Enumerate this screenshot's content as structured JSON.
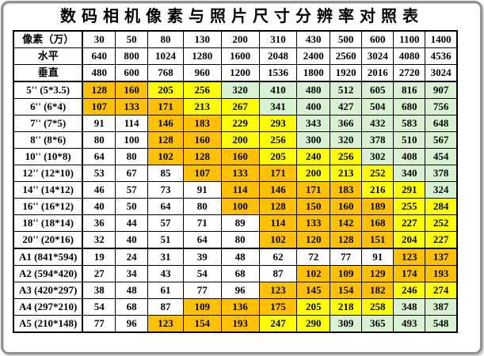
{
  "title": "数码相机像素与照片尺寸分辨率对照表",
  "color_key": {
    "w": "#FFFFFF",
    "o": "#FFC000",
    "y": "#FFFF00",
    "g": "#D9F2D2"
  },
  "chart_data": {
    "type": "table",
    "title": "数码相机像素与照片尺寸分辨率对照表",
    "columns": [
      "像素（万）",
      "30",
      "50",
      "80",
      "130",
      "200",
      "310",
      "430",
      "500",
      "600",
      "1100",
      "1400"
    ],
    "rows": [
      {
        "label": "水平",
        "values": [
          640,
          800,
          1024,
          1280,
          1600,
          2048,
          2400,
          2560,
          3024,
          4080,
          4536
        ],
        "colors": [
          "w",
          "w",
          "w",
          "w",
          "w",
          "w",
          "w",
          "w",
          "w",
          "w",
          "w"
        ],
        "sep_below": false
      },
      {
        "label": "垂直",
        "values": [
          480,
          600,
          768,
          960,
          1200,
          1536,
          1800,
          1920,
          2016,
          2720,
          3024
        ],
        "colors": [
          "w",
          "w",
          "w",
          "w",
          "w",
          "w",
          "w",
          "w",
          "w",
          "w",
          "w"
        ],
        "sep_below": true
      },
      {
        "label": "5'' (5*3.5)",
        "values": [
          128,
          160,
          205,
          256,
          320,
          410,
          480,
          512,
          605,
          816,
          907
        ],
        "colors": [
          "o",
          "o",
          "y",
          "y",
          "g",
          "g",
          "g",
          "g",
          "g",
          "g",
          "g"
        ],
        "sep_below": false
      },
      {
        "label": "6'' (6*4)",
        "values": [
          107,
          133,
          171,
          213,
          267,
          341,
          400,
          427,
          504,
          680,
          756
        ],
        "colors": [
          "o",
          "o",
          "o",
          "y",
          "y",
          "g",
          "g",
          "g",
          "g",
          "g",
          "g"
        ],
        "sep_below": false
      },
      {
        "label": "7'' (7*5)",
        "values": [
          91,
          114,
          146,
          183,
          229,
          293,
          343,
          366,
          432,
          583,
          648
        ],
        "colors": [
          "w",
          "w",
          "o",
          "o",
          "y",
          "y",
          "g",
          "g",
          "g",
          "g",
          "g"
        ],
        "sep_below": false
      },
      {
        "label": "8'' (8*6)",
        "values": [
          80,
          100,
          128,
          160,
          200,
          256,
          300,
          320,
          378,
          510,
          567
        ],
        "colors": [
          "w",
          "w",
          "o",
          "o",
          "y",
          "y",
          "g",
          "g",
          "g",
          "g",
          "g"
        ],
        "sep_below": false
      },
      {
        "label": "10'' (10*8)",
        "values": [
          64,
          80,
          102,
          128,
          160,
          205,
          240,
          256,
          302,
          408,
          454
        ],
        "colors": [
          "w",
          "w",
          "o",
          "o",
          "o",
          "y",
          "y",
          "y",
          "g",
          "g",
          "g"
        ],
        "sep_below": false
      },
      {
        "label": "12'' (12*10)",
        "values": [
          53,
          67,
          85,
          107,
          133,
          171,
          200,
          213,
          252,
          340,
          378
        ],
        "colors": [
          "w",
          "w",
          "w",
          "o",
          "o",
          "o",
          "y",
          "y",
          "y",
          "g",
          "g"
        ],
        "sep_below": false
      },
      {
        "label": "14'' (14*12)",
        "values": [
          46,
          57,
          73,
          91,
          114,
          146,
          171,
          183,
          216,
          291,
          324
        ],
        "colors": [
          "w",
          "w",
          "w",
          "w",
          "o",
          "o",
          "o",
          "o",
          "y",
          "y",
          "g"
        ],
        "sep_below": false
      },
      {
        "label": "16'' (16*12)",
        "values": [
          40,
          50,
          64,
          80,
          100,
          128,
          150,
          160,
          189,
          255,
          284
        ],
        "colors": [
          "w",
          "w",
          "w",
          "w",
          "o",
          "o",
          "o",
          "o",
          "o",
          "y",
          "y"
        ],
        "sep_below": false
      },
      {
        "label": "18'' (18*14)",
        "values": [
          36,
          44,
          57,
          71,
          89,
          114,
          133,
          142,
          168,
          227,
          252
        ],
        "colors": [
          "w",
          "w",
          "w",
          "w",
          "w",
          "o",
          "o",
          "o",
          "o",
          "y",
          "y"
        ],
        "sep_below": false
      },
      {
        "label": "20'' (20*16)",
        "values": [
          32,
          40,
          51,
          64,
          80,
          102,
          120,
          128,
          151,
          204,
          227
        ],
        "colors": [
          "w",
          "w",
          "w",
          "w",
          "w",
          "o",
          "o",
          "o",
          "o",
          "y",
          "y"
        ],
        "sep_below": true
      },
      {
        "label": "A1 (841*594)",
        "values": [
          19,
          24,
          31,
          39,
          48,
          62,
          72,
          77,
          91,
          123,
          137
        ],
        "colors": [
          "w",
          "w",
          "w",
          "w",
          "w",
          "w",
          "w",
          "w",
          "w",
          "o",
          "o"
        ],
        "sep_below": false
      },
      {
        "label": "A2 (594*420)",
        "values": [
          27,
          34,
          43,
          54,
          68,
          87,
          102,
          109,
          129,
          174,
          193
        ],
        "colors": [
          "w",
          "w",
          "w",
          "w",
          "w",
          "w",
          "o",
          "o",
          "o",
          "o",
          "o"
        ],
        "sep_below": false
      },
      {
        "label": "A3 (420*297)",
        "values": [
          38,
          48,
          61,
          77,
          96,
          123,
          145,
          154,
          182,
          246,
          274
        ],
        "colors": [
          "w",
          "w",
          "w",
          "w",
          "w",
          "o",
          "o",
          "o",
          "o",
          "y",
          "y"
        ],
        "sep_below": false
      },
      {
        "label": "A4 (297*210)",
        "values": [
          54,
          68,
          87,
          109,
          136,
          175,
          205,
          218,
          258,
          348,
          387
        ],
        "colors": [
          "w",
          "w",
          "w",
          "o",
          "o",
          "o",
          "y",
          "y",
          "y",
          "g",
          "g"
        ],
        "sep_below": false
      },
      {
        "label": "A5 (210*148)",
        "values": [
          77,
          96,
          123,
          154,
          193,
          247,
          290,
          309,
          365,
          493,
          548
        ],
        "colors": [
          "w",
          "w",
          "o",
          "o",
          "o",
          "y",
          "y",
          "g",
          "g",
          "g",
          "g"
        ],
        "sep_below": false
      }
    ]
  }
}
